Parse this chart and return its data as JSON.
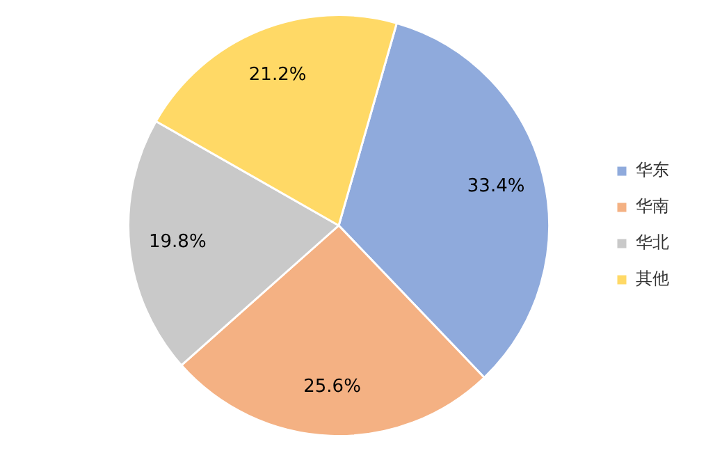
{
  "chart_data": {
    "type": "pie",
    "categories": [
      "华东",
      "华南",
      "华北",
      "其他"
    ],
    "values": [
      33.4,
      25.6,
      19.8,
      21.2
    ],
    "colors": [
      "#8faadc",
      "#f4b183",
      "#c9c9c9",
      "#ffd966"
    ],
    "value_labels": [
      "33.4%",
      "25.6%",
      "19.8%",
      "21.2%"
    ],
    "legend": "right"
  }
}
